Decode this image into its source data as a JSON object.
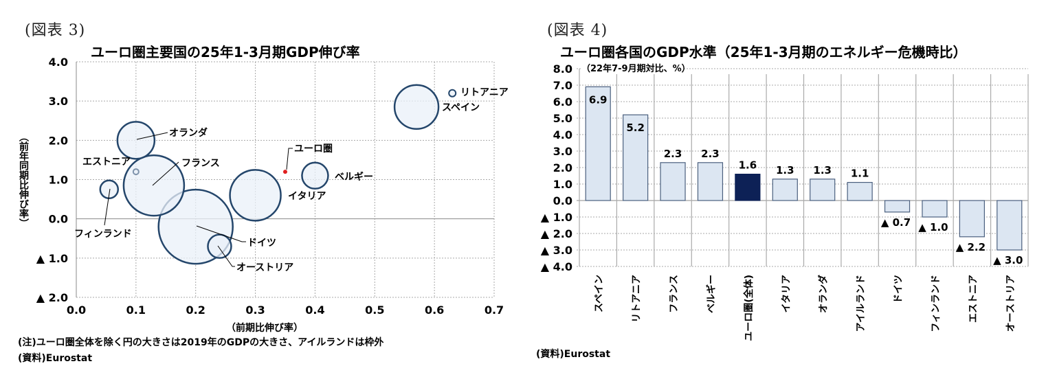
{
  "left": {
    "figure_label": "(図表 3)",
    "title": "ユーロ圏主要国の25年1-3月期GDP伸び率",
    "y_axis_label": "（前年同期比伸び率）",
    "x_axis_label": "（前期比伸び率）",
    "note": "(注)ユーロ圏全体を除く円の大きさは2019年のGDPの大きさ、アイルランドは枠外",
    "source": "(資料)Eurostat",
    "y_ticks": [
      "4.0",
      "3.0",
      "2.0",
      "1.0",
      "0.0",
      "▲ 1.0",
      "▲ 2.0"
    ],
    "x_ticks": [
      "0.0",
      "0.1",
      "0.2",
      "0.3",
      "0.4",
      "0.5",
      "0.6",
      "0.7"
    ]
  },
  "right": {
    "figure_label": "(図表 4)",
    "title": "ユーロ圏各国のGDP水準（25年1-3月期のエネルギー危機時比）",
    "unit_label": "（22年7-9月期対比、%）",
    "source": "(資料)Eurostat",
    "y_ticks": [
      "8.0",
      "7.0",
      "6.0",
      "5.0",
      "4.0",
      "3.0",
      "2.0",
      "1.0",
      "0.0",
      "▲ 1.0",
      "▲ 2.0",
      "▲ 3.0",
      "▲ 4.0"
    ]
  },
  "colors": {
    "bubble_fill": "#e9f0f8",
    "bubble_stroke": "#24466b",
    "euro_dot": "#e02020",
    "bar_fill": "#dce6f2",
    "bar_stroke": "#4a5f7e",
    "bar_highlight": "#0d2156",
    "grid": "#a8a8a8"
  },
  "chart_data": [
    {
      "type": "scatter",
      "subtype": "bubble",
      "title": "ユーロ圏主要国の25年1-3月期GDP伸び率",
      "xlabel": "（前期比伸び率）",
      "ylabel": "（前年同期比伸び率）",
      "xlim": [
        0.0,
        0.7
      ],
      "ylim": [
        -2.0,
        4.0
      ],
      "grid": true,
      "points": [
        {
          "name": "スペイン",
          "x": 0.57,
          "y": 2.85,
          "r": 32
        },
        {
          "name": "リトアニア",
          "x": 0.63,
          "y": 3.2,
          "r": 5
        },
        {
          "name": "オランダ",
          "x": 0.1,
          "y": 2.0,
          "r": 27
        },
        {
          "name": "フランス",
          "x": 0.13,
          "y": 0.85,
          "r": 44
        },
        {
          "name": "エストニア",
          "x": 0.1,
          "y": 1.2,
          "r": 4
        },
        {
          "name": "フィンランド",
          "x": 0.055,
          "y": 0.75,
          "r": 13
        },
        {
          "name": "イタリア",
          "x": 0.3,
          "y": 0.6,
          "r": 37
        },
        {
          "name": "ユーロ圏",
          "x": 0.35,
          "y": 1.2,
          "r": 3
        },
        {
          "name": "ベルギー",
          "x": 0.4,
          "y": 1.1,
          "r": 19
        },
        {
          "name": "ドイツ",
          "x": 0.2,
          "y": -0.2,
          "r": 54
        },
        {
          "name": "オーストリア",
          "x": 0.24,
          "y": -0.7,
          "r": 17
        }
      ]
    },
    {
      "type": "bar",
      "title": "ユーロ圏各国のGDP水準（25年1-3月期のエネルギー危機時比）",
      "ylabel": "（22年7-9月期対比、%）",
      "ylim": [
        -4.0,
        8.0
      ],
      "grid": true,
      "categories": [
        "スペイン",
        "リトアニア",
        "フランス",
        "ベルギー",
        "ユーロ圏(全体)",
        "イタリア",
        "オランダ",
        "アイルランド",
        "ドイツ",
        "フィンランド",
        "エストニア",
        "オーストリア"
      ],
      "values": [
        6.9,
        5.2,
        2.3,
        2.3,
        1.6,
        1.3,
        1.3,
        1.1,
        -0.7,
        -1.0,
        -2.2,
        -3.0
      ],
      "value_labels": [
        "6.9",
        "5.2",
        "2.3",
        "2.3",
        "1.6",
        "1.3",
        "1.3",
        "1.1",
        "▲ 0.7",
        "▲ 1.0",
        "▲ 2.2",
        "▲ 3.0"
      ],
      "highlight_index": 4
    }
  ]
}
